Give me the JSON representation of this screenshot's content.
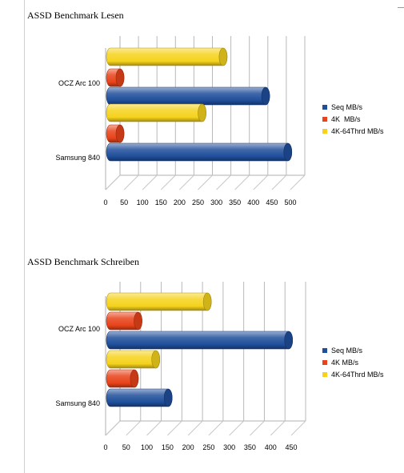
{
  "chart_data": [
    {
      "type": "bar",
      "orientation": "horizontal",
      "style": "3d-cylinder",
      "title": "ASSD Benchmark Lesen",
      "categories": [
        "OCZ Arc 100",
        "Samsung 840"
      ],
      "series": [
        {
          "name": "Seq MB/s",
          "color": "#1f4e9b",
          "values": [
            420,
            480
          ]
        },
        {
          "name": "4K  MB/s",
          "color": "#e8431a",
          "values": [
            26,
            26
          ]
        },
        {
          "name": "4K-64Thrd MB/s",
          "color": "#f5d21c",
          "values": [
            305,
            248
          ]
        }
      ],
      "xlim": [
        0,
        500
      ],
      "xticks": [
        0,
        50,
        100,
        150,
        200,
        250,
        300,
        350,
        400,
        450,
        500
      ],
      "grid": true,
      "legend": "right"
    },
    {
      "type": "bar",
      "orientation": "horizontal",
      "style": "3d-cylinder",
      "title": "ASSD Benchmark Schreiben",
      "categories": [
        "OCZ Arc 100",
        "Samsung 840"
      ],
      "series": [
        {
          "name": "Seq MB/s",
          "color": "#1f4e9b",
          "values": [
            432,
            140
          ]
        },
        {
          "name": "4K MB/s",
          "color": "#e8431a",
          "values": [
            67,
            58
          ]
        },
        {
          "name": "4K-64Thrd MB/s",
          "color": "#f5d21c",
          "values": [
            235,
            110
          ]
        }
      ],
      "xlim": [
        0,
        450
      ],
      "xticks": [
        0,
        50,
        100,
        150,
        200,
        250,
        300,
        350,
        400,
        450
      ],
      "grid": true,
      "legend": "right"
    }
  ]
}
